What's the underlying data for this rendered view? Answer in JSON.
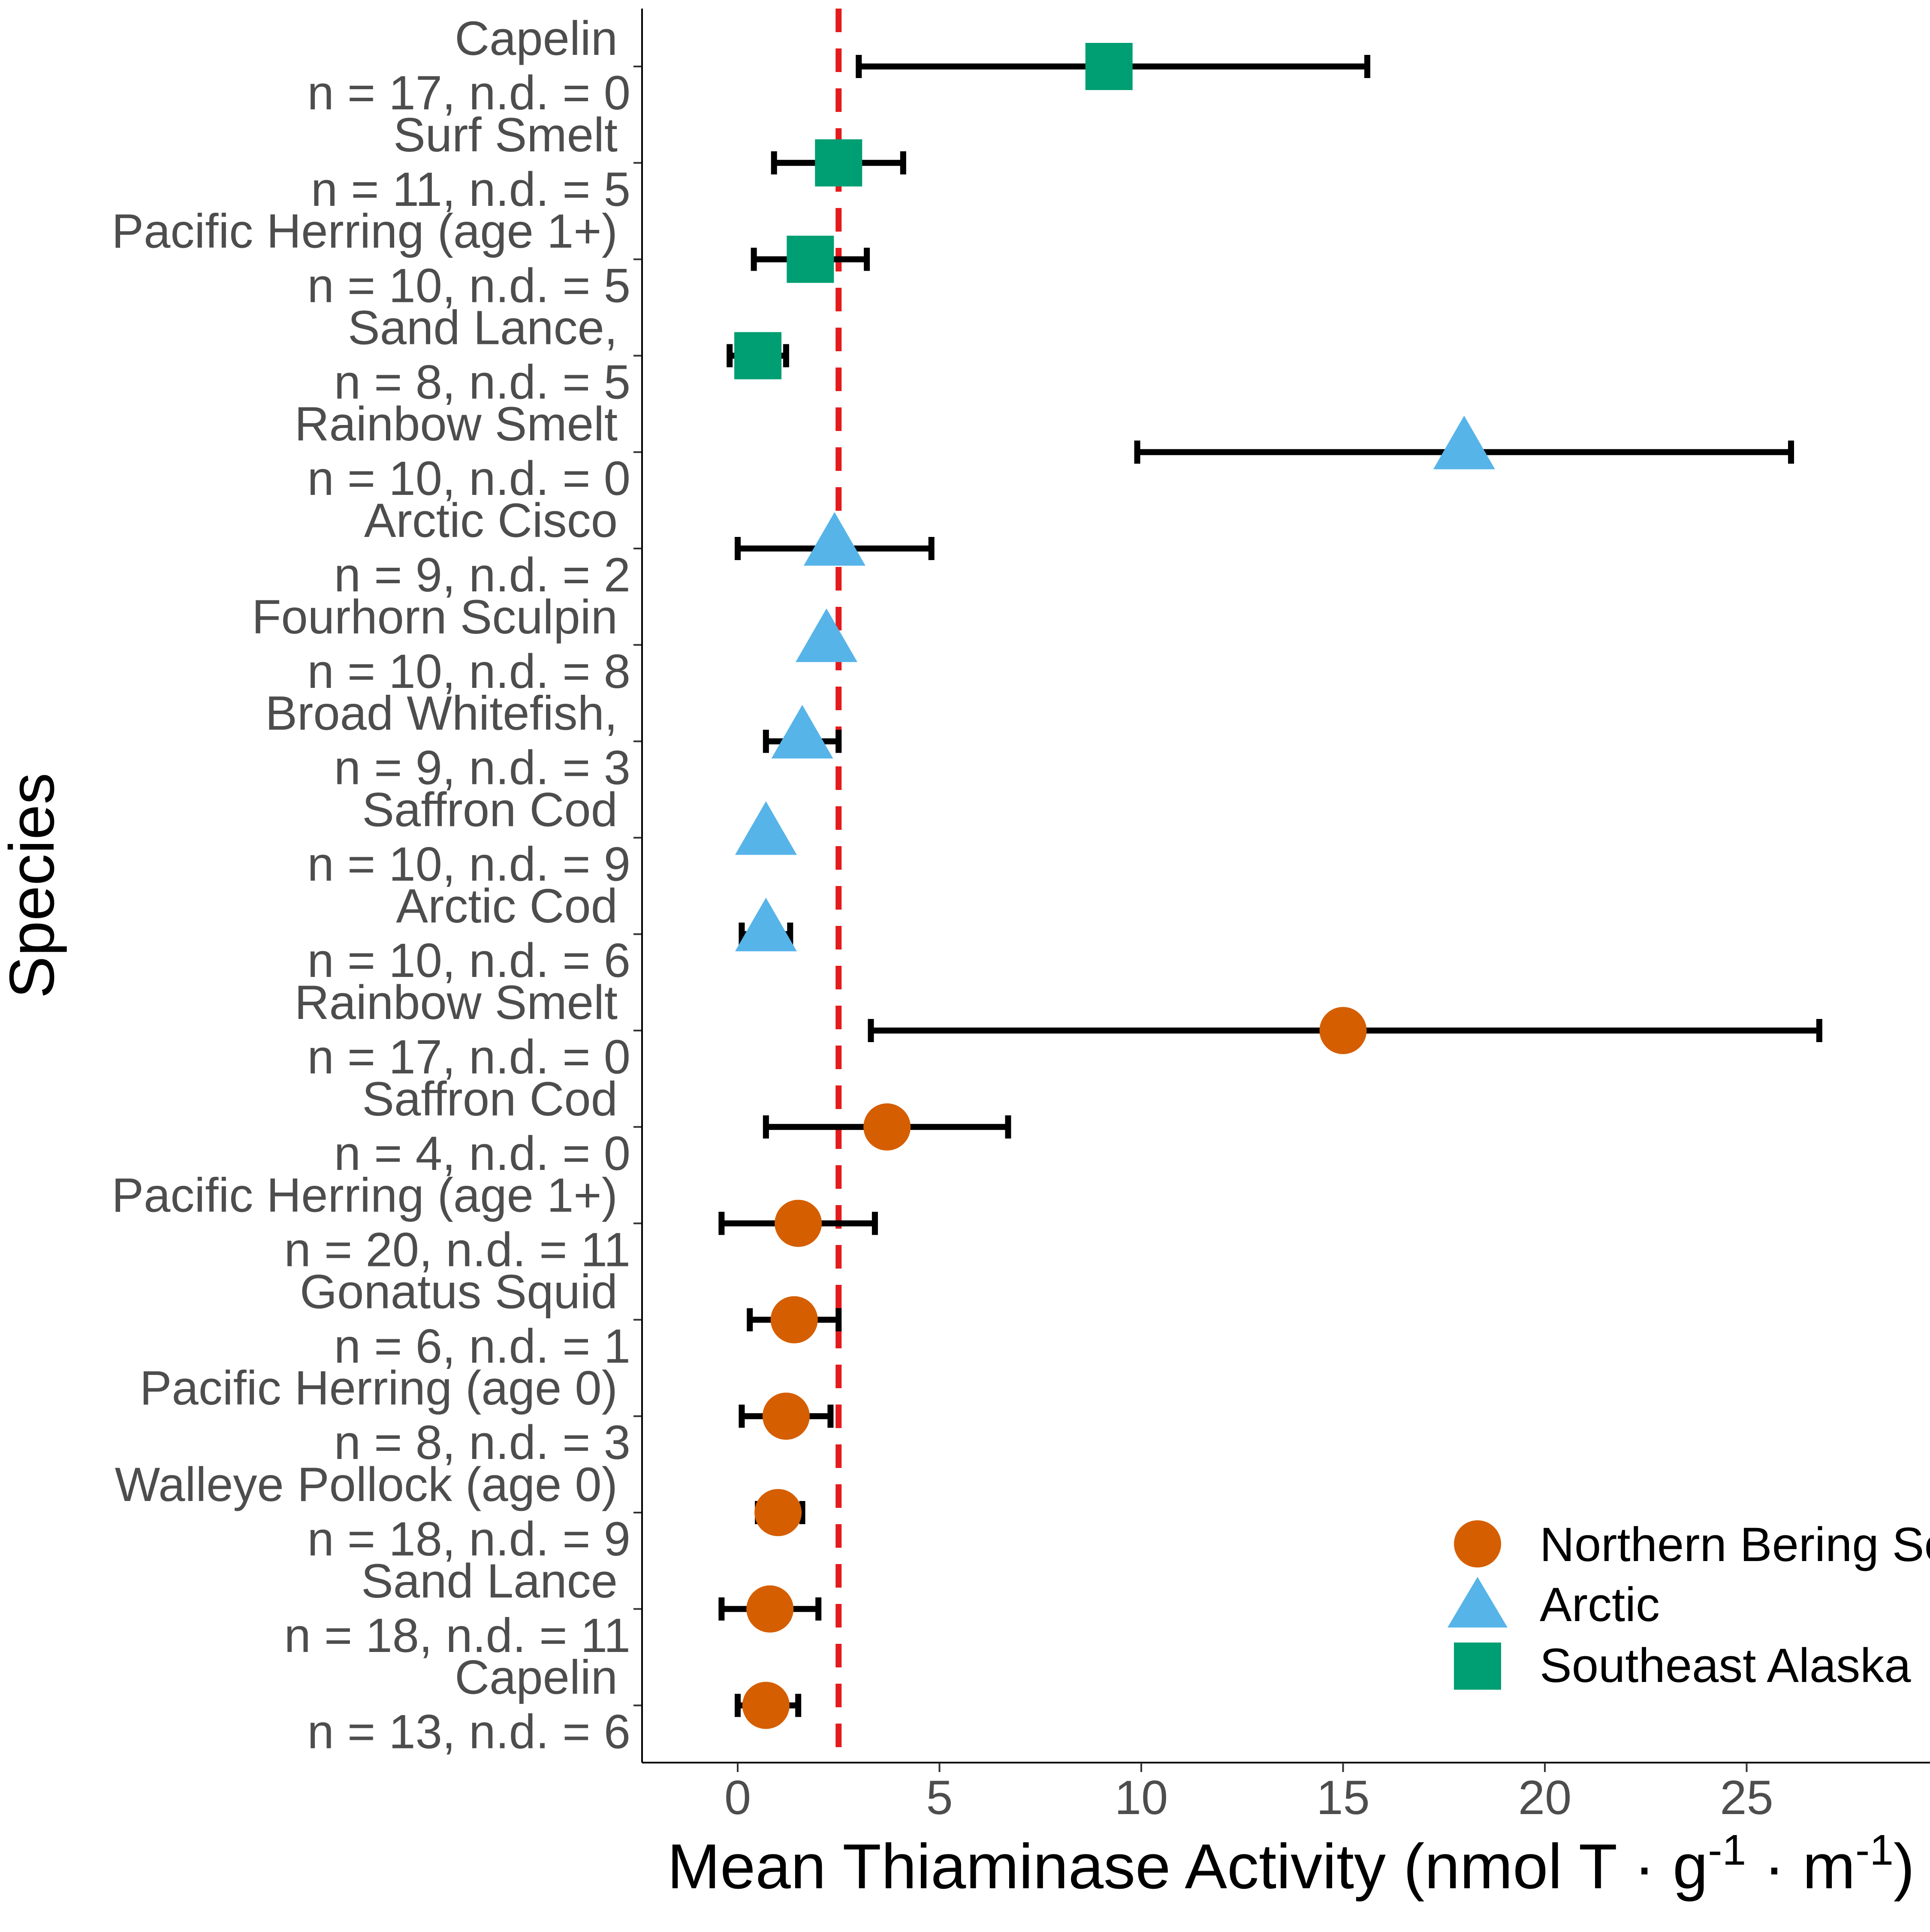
{
  "chart_data": {
    "type": "scatter",
    "xlabel": {
      "main": "Mean Thiaminase Activity (nmol T · g",
      "sup1": "-1",
      "mid": " · m",
      "sup2": "-1",
      "end": ")"
    },
    "ylabel": "Species",
    "xlim": [
      -2.4,
      29.3
    ],
    "xticks": [
      0,
      5,
      10,
      15,
      20,
      25
    ],
    "xtick_labels": [
      "0",
      "5",
      "10",
      "15",
      "20",
      "25"
    ],
    "threshold": {
      "value": 2.5,
      "color": "#e41a1c",
      "style": "dashed"
    },
    "legend": {
      "position": "bottom-right",
      "items": [
        {
          "label": "Northern Bering Sea",
          "shape": "circle",
          "color": "#d55e00"
        },
        {
          "label": "Arctic",
          "shape": "triangle",
          "color": "#56b4e9"
        },
        {
          "label": "Southeast Alaska",
          "shape": "square",
          "color": "#009e73"
        }
      ]
    },
    "rows": [
      {
        "species": "Capelin",
        "counts": "n = 17, n.d. = 0",
        "group": "Southeast Alaska",
        "mean": 9.2,
        "lo": 3.0,
        "hi": 15.6
      },
      {
        "species": "Surf Smelt",
        "counts": "n = 11, n.d. = 5",
        "group": "Southeast Alaska",
        "mean": 2.5,
        "lo": 0.9,
        "hi": 4.1
      },
      {
        "species": "Pacific Herring (age 1+)",
        "counts": "n = 10, n.d. = 5",
        "group": "Southeast Alaska",
        "mean": 1.8,
        "lo": 0.4,
        "hi": 3.2
      },
      {
        "species": "Sand Lance,",
        "counts": "n = 8, n.d. = 5",
        "group": "Southeast Alaska",
        "mean": 0.5,
        "lo": -0.2,
        "hi": 1.2
      },
      {
        "species": "Rainbow Smelt",
        "counts": "n = 10, n.d. = 0",
        "group": "Arctic",
        "mean": 18.0,
        "lo": 9.9,
        "hi": 26.1
      },
      {
        "species": "Arctic Cisco",
        "counts": "n = 9, n.d. = 2",
        "group": "Arctic",
        "mean": 2.4,
        "lo": 0.0,
        "hi": 4.8
      },
      {
        "species": "Fourhorn Sculpin",
        "counts": "n = 10, n.d. = 8",
        "group": "Arctic",
        "mean": 2.2,
        "lo": null,
        "hi": null
      },
      {
        "species": "Broad Whitefish,",
        "counts": "n = 9, n.d. = 3",
        "group": "Arctic",
        "mean": 1.6,
        "lo": 0.7,
        "hi": 2.5
      },
      {
        "species": "Saffron Cod",
        "counts": "n = 10, n.d. = 9",
        "group": "Arctic",
        "mean": 0.7,
        "lo": null,
        "hi": null
      },
      {
        "species": "Arctic Cod",
        "counts": "n = 10, n.d. = 6",
        "group": "Arctic",
        "mean": 0.7,
        "lo": 0.1,
        "hi": 1.3
      },
      {
        "species": "Rainbow Smelt",
        "counts": "n = 17, n.d. = 0",
        "group": "Northern Bering Sea",
        "mean": 15.0,
        "lo": 3.3,
        "hi": 26.8
      },
      {
        "species": "Saffron Cod",
        "counts": "n = 4, n.d. = 0",
        "group": "Northern Bering Sea",
        "mean": 3.7,
        "lo": 0.7,
        "hi": 6.7
      },
      {
        "species": "Pacific Herring (age 1+)",
        "counts": "n = 20, n.d. = 11",
        "group": "Northern Bering Sea",
        "mean": 1.5,
        "lo": -0.4,
        "hi": 3.4
      },
      {
        "species": "Gonatus Squid",
        "counts": "n = 6, n.d. = 1",
        "group": "Northern Bering Sea",
        "mean": 1.4,
        "lo": 0.3,
        "hi": 2.5
      },
      {
        "species": "Pacific Herring (age 0)",
        "counts": "n = 8, n.d. = 3",
        "group": "Northern Bering Sea",
        "mean": 1.2,
        "lo": 0.1,
        "hi": 2.3
      },
      {
        "species": "Walleye Pollock (age 0)",
        "counts": "n = 18, n.d. = 9",
        "group": "Northern Bering Sea",
        "mean": 1.0,
        "lo": 0.5,
        "hi": 1.6
      },
      {
        "species": "Sand Lance",
        "counts": "n = 18, n.d. = 11",
        "group": "Northern Bering Sea",
        "mean": 0.8,
        "lo": -0.4,
        "hi": 2.0
      },
      {
        "species": "Capelin",
        "counts": "n = 13, n.d. = 6",
        "group": "Northern Bering Sea",
        "mean": 0.7,
        "lo": 0.0,
        "hi": 1.5
      }
    ]
  }
}
